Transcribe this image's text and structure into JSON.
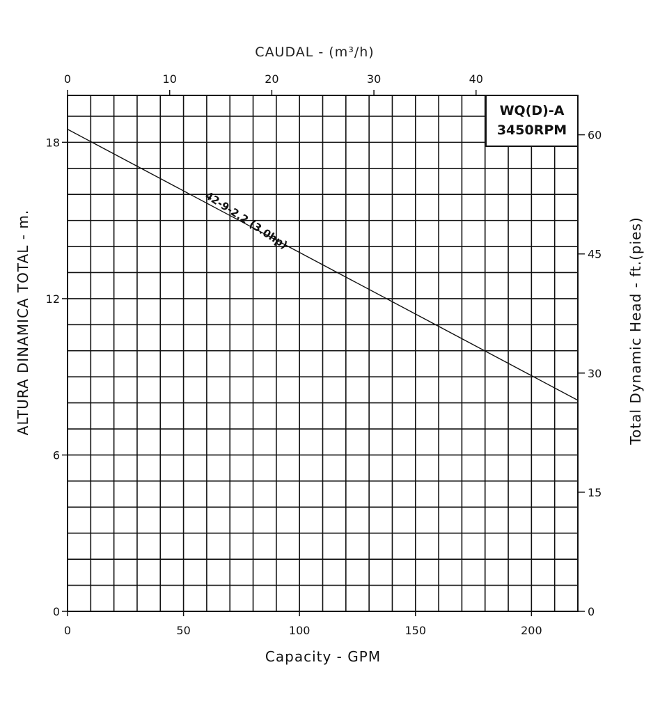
{
  "chart_data": {
    "type": "line",
    "title": "",
    "legend_box": {
      "line1": "WQ(D)-A",
      "line2": "3450RPM",
      "placement": "top-right"
    },
    "xlabel": "Capacity - GPM",
    "ylabel": "ALTURA DINAMICA TOTAL - m.",
    "x2label": "CAUDAL - (m³/h)",
    "y2label": "Total Dynamic Head - ft.(pies)",
    "xlim": [
      0,
      220
    ],
    "ylim": [
      0,
      19.8
    ],
    "x_ticks": [
      0,
      50,
      100,
      150,
      200
    ],
    "y_ticks": [
      0,
      6,
      12,
      18
    ],
    "x2_ticks": [
      0,
      10,
      20,
      30,
      40
    ],
    "y2_ticks": [
      0,
      15,
      30,
      45,
      60
    ],
    "grid": true,
    "series": [
      {
        "name": "42-9-2.2 (3.0hp)",
        "x": [
          0,
          220
        ],
        "y": [
          18.5,
          8.1
        ]
      }
    ]
  }
}
